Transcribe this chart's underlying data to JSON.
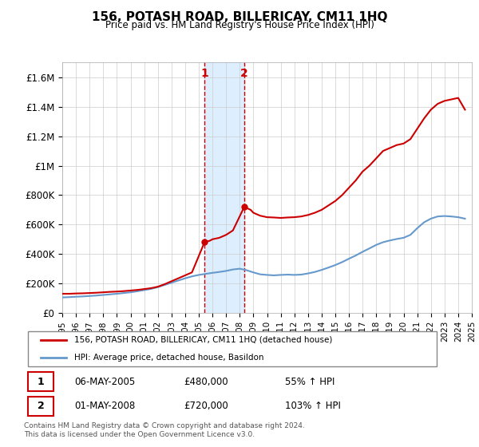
{
  "title": "156, POTASH ROAD, BILLERICAY, CM11 1HQ",
  "subtitle": "Price paid vs. HM Land Registry's House Price Index (HPI)",
  "legend_line1": "156, POTASH ROAD, BILLERICAY, CM11 1HQ (detached house)",
  "legend_line2": "HPI: Average price, detached house, Basildon",
  "footnote": "Contains HM Land Registry data © Crown copyright and database right 2024.\nThis data is licensed under the Open Government Licence v3.0.",
  "transaction1": {
    "label": "1",
    "date": "06-MAY-2005",
    "price": "£480,000",
    "pct": "55% ↑ HPI"
  },
  "transaction2": {
    "label": "2",
    "date": "01-MAY-2008",
    "price": "£720,000",
    "pct": "103% ↑ HPI"
  },
  "red_color": "#cc0000",
  "blue_color": "#6699cc",
  "shaded_color": "#ddeeff",
  "vline1_color": "#cc0000",
  "vline2_color": "#cc0000",
  "ylim": [
    0,
    1700000
  ],
  "yticks": [
    0,
    200000,
    400000,
    600000,
    800000,
    1000000,
    1200000,
    1400000,
    1600000
  ],
  "ytick_labels": [
    "£0",
    "£200K",
    "£400K",
    "£600K",
    "£800K",
    "£1M",
    "£1.2M",
    "£1.4M",
    "£1.6M"
  ],
  "red_x": [
    1995,
    1995.5,
    1996,
    1996.5,
    1997,
    1997.5,
    1998,
    1998.5,
    1999,
    1999.5,
    2000,
    2000.5,
    2001,
    2001.5,
    2002,
    2002.5,
    2003,
    2003.5,
    2004,
    2004.5,
    2005.42,
    2005.8,
    2006,
    2006.5,
    2007,
    2007.5,
    2008.33,
    2008.8,
    2009,
    2009.5,
    2010,
    2010.5,
    2011,
    2011.5,
    2012,
    2012.5,
    2013,
    2013.5,
    2014,
    2014.5,
    2015,
    2015.5,
    2016,
    2016.5,
    2017,
    2017.5,
    2018,
    2018.5,
    2019,
    2019.5,
    2020,
    2020.5,
    2021,
    2021.5,
    2022,
    2022.5,
    2023,
    2023.5,
    2024,
    2024.5
  ],
  "red_y": [
    130000,
    130000,
    132000,
    133000,
    135000,
    137000,
    140000,
    143000,
    145000,
    148000,
    152000,
    156000,
    162000,
    168000,
    178000,
    195000,
    215000,
    235000,
    255000,
    275000,
    480000,
    490000,
    500000,
    510000,
    530000,
    560000,
    720000,
    700000,
    680000,
    660000,
    650000,
    648000,
    645000,
    648000,
    650000,
    655000,
    665000,
    680000,
    700000,
    730000,
    760000,
    800000,
    850000,
    900000,
    960000,
    1000000,
    1050000,
    1100000,
    1120000,
    1140000,
    1150000,
    1180000,
    1250000,
    1320000,
    1380000,
    1420000,
    1440000,
    1450000,
    1460000,
    1380000
  ],
  "blue_x": [
    1995,
    1995.5,
    1996,
    1996.5,
    1997,
    1997.5,
    1998,
    1998.5,
    1999,
    1999.5,
    2000,
    2000.5,
    2001,
    2001.5,
    2002,
    2002.5,
    2003,
    2003.5,
    2004,
    2004.5,
    2005,
    2005.5,
    2006,
    2006.5,
    2007,
    2007.5,
    2008,
    2008.5,
    2009,
    2009.5,
    2010,
    2010.5,
    2011,
    2011.5,
    2012,
    2012.5,
    2013,
    2013.5,
    2014,
    2014.5,
    2015,
    2015.5,
    2016,
    2016.5,
    2017,
    2017.5,
    2018,
    2018.5,
    2019,
    2019.5,
    2020,
    2020.5,
    2021,
    2021.5,
    2022,
    2022.5,
    2023,
    2023.5,
    2024,
    2024.5
  ],
  "blue_y": [
    105000,
    107000,
    110000,
    112000,
    115000,
    118000,
    122000,
    126000,
    130000,
    135000,
    140000,
    147000,
    155000,
    163000,
    175000,
    190000,
    205000,
    220000,
    235000,
    248000,
    258000,
    265000,
    272000,
    278000,
    285000,
    295000,
    300000,
    290000,
    275000,
    262000,
    258000,
    255000,
    258000,
    260000,
    258000,
    260000,
    268000,
    278000,
    292000,
    308000,
    325000,
    345000,
    368000,
    390000,
    415000,
    438000,
    462000,
    480000,
    492000,
    502000,
    510000,
    530000,
    575000,
    615000,
    640000,
    655000,
    658000,
    655000,
    650000,
    640000
  ],
  "vline1_x": 2005.42,
  "vline2_x": 2008.33,
  "shade_x1": 2005.42,
  "shade_x2": 2008.33,
  "xmin": 1995,
  "xmax": 2025,
  "xtick_years": [
    1995,
    1996,
    1997,
    1998,
    1999,
    2000,
    2001,
    2002,
    2003,
    2004,
    2005,
    2006,
    2007,
    2008,
    2009,
    2010,
    2011,
    2012,
    2013,
    2014,
    2015,
    2016,
    2017,
    2018,
    2019,
    2020,
    2021,
    2022,
    2023,
    2024,
    2025
  ]
}
